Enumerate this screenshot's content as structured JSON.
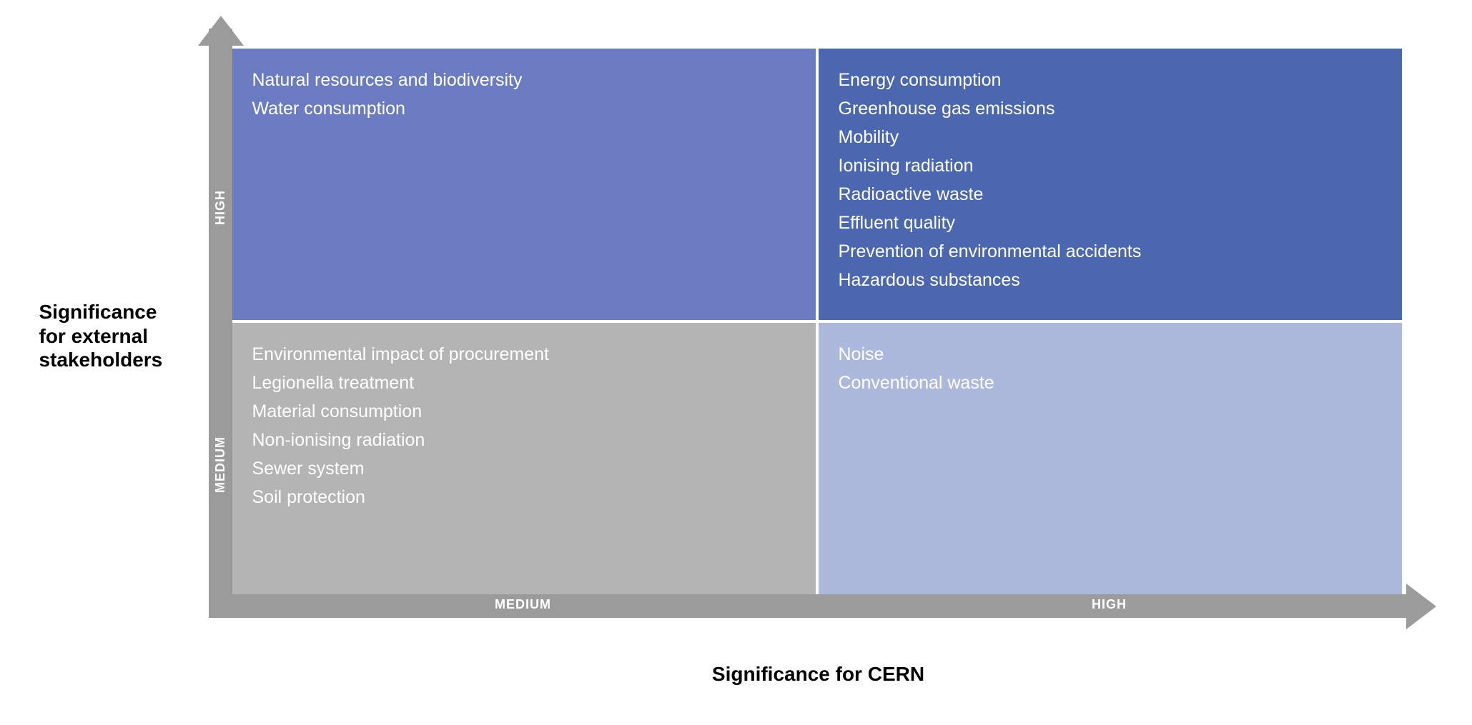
{
  "matrix": {
    "type": "quadrant-matrix",
    "y_axis": {
      "label": "Significance for external stakeholders",
      "ticks": [
        "MEDIUM",
        "HIGH"
      ]
    },
    "x_axis": {
      "label": "Significance for CERN",
      "ticks": [
        "MEDIUM",
        "HIGH"
      ]
    },
    "axis_color": "#9b9b9b",
    "axis_tick_text_color": "#ffffff",
    "item_text_color": "#ffffff",
    "item_fontsize": 25,
    "axis_label_fontsize": 28,
    "axis_tick_fontsize": 18,
    "background_color": "#ffffff",
    "gap_color": "#ffffff",
    "quadrants": {
      "top_left": {
        "x": "MEDIUM",
        "y": "HIGH",
        "background_color": "#6a7bc1",
        "items": [
          "Natural resources and biodiversity",
          "Water consumption"
        ]
      },
      "top_right": {
        "x": "HIGH",
        "y": "HIGH",
        "background_color": "#4b67af",
        "items": [
          "Energy consumption",
          "Greenhouse gas emissions",
          "Mobility",
          "Ionising radiation",
          "Radioactive waste",
          "Effluent quality",
          "Prevention of environmental accidents",
          "Hazardous substances"
        ]
      },
      "bottom_left": {
        "x": "MEDIUM",
        "y": "MEDIUM",
        "background_color": "#b4b4b4",
        "items": [
          "Environmental impact of procurement",
          "Legionella treatment",
          "Material consumption",
          "Non-ionising radiation",
          "Sewer system",
          "Soil protection"
        ]
      },
      "bottom_right": {
        "x": "HIGH",
        "y": "MEDIUM",
        "background_color": "#adb9dc",
        "items": [
          "Noise",
          "Conventional waste"
        ]
      }
    }
  }
}
